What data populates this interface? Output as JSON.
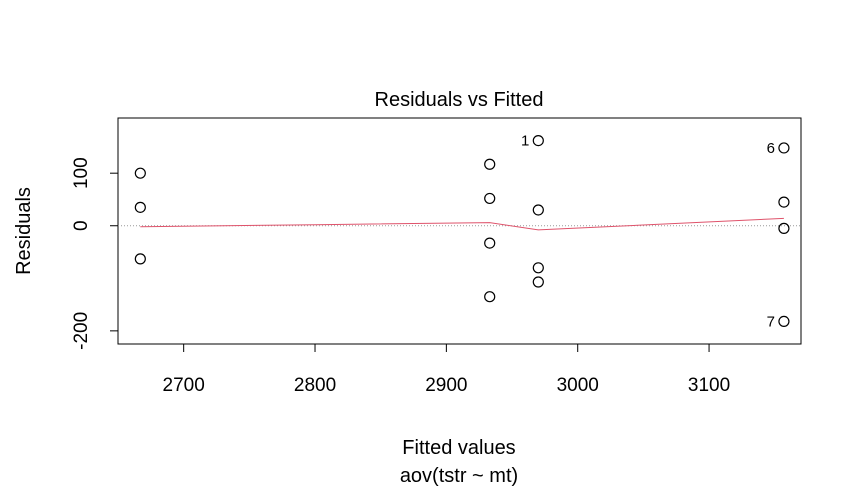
{
  "chart_data": {
    "type": "scatter",
    "title": "Residuals vs Fitted",
    "xlabel": "Fitted values",
    "subtitle": "aov(tstr ~ mt)",
    "ylabel": "Residuals",
    "xlim": [
      2650,
      3170
    ],
    "ylim": [
      -225,
      205
    ],
    "xticks": [
      "2700",
      "2800",
      "2900",
      "3000",
      "3100"
    ],
    "yticks": [
      "-200",
      "0",
      "100"
    ],
    "ytick_values": [
      -200,
      0,
      100
    ],
    "xtick_values": [
      2700,
      2800,
      2900,
      3000,
      3100
    ],
    "points": [
      {
        "x": 2667,
        "y": 100
      },
      {
        "x": 2667,
        "y": 35
      },
      {
        "x": 2667,
        "y": -63
      },
      {
        "x": 2933,
        "y": 117
      },
      {
        "x": 2933,
        "y": 52
      },
      {
        "x": 2933,
        "y": -33
      },
      {
        "x": 2933,
        "y": -135
      },
      {
        "x": 2970,
        "y": 162,
        "label": "1"
      },
      {
        "x": 2970,
        "y": 30
      },
      {
        "x": 2970,
        "y": -80
      },
      {
        "x": 2970,
        "y": -107
      },
      {
        "x": 3157,
        "y": 148,
        "label": "6"
      },
      {
        "x": 3157,
        "y": 45
      },
      {
        "x": 3157,
        "y": -5
      },
      {
        "x": 3157,
        "y": -182,
        "label": "7"
      }
    ],
    "smooth": {
      "x": [
        2667,
        2800,
        2933,
        2970,
        3157
      ],
      "y": [
        -2,
        2,
        6,
        -8,
        14
      ],
      "color": "#DF536B"
    },
    "zero_line": {
      "y": 0,
      "color": "#999999",
      "style": "dotted"
    },
    "grid": false
  }
}
